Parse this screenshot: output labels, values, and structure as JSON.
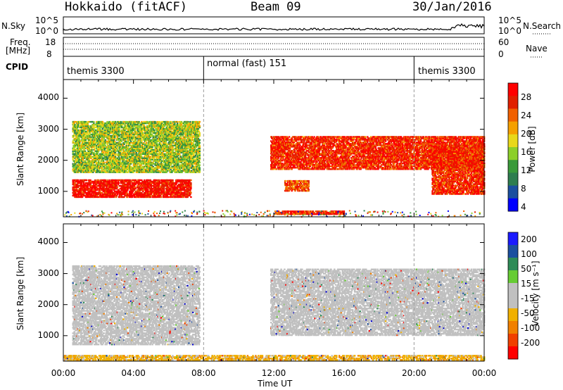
{
  "header": {
    "title": "Hokkaido (fitACF)",
    "beam": "Beam 09",
    "date": "30/Jan/2016"
  },
  "side_labels": {
    "nsky": "N.Sky",
    "nsearch": "N.Search",
    "freq_line1": "Freq.",
    "freq_line2": "[MHz]",
    "nave": "Nave",
    "cpid": "CPID"
  },
  "noise_axis": {
    "top": "10^5",
    "bottom": "10^0"
  },
  "freq_axis": {
    "left_top": "18",
    "left_bottom": "8",
    "right_top": "60",
    "right_bottom": "0"
  },
  "cpid_segments": [
    {
      "label": "themis 3300",
      "start": "00:00",
      "end": "08:00"
    },
    {
      "label": "normal (fast) 151",
      "start": "08:00",
      "end": "20:00"
    },
    {
      "label": "themis 3300",
      "start": "20:00",
      "end": "00:00"
    }
  ],
  "power_panel": {
    "ylabel": "Slant Range [km]",
    "cbar_label": "Power [dB]",
    "cbar_ticks": [
      "28",
      "24",
      "20",
      "16",
      "12",
      "8",
      "4"
    ]
  },
  "velocity_panel": {
    "ylabel": "Slant Range [km]",
    "cbar_label": "Velocity [m s⁻¹]",
    "cbar_ticks": [
      "200",
      "100",
      "50",
      "15",
      "-15",
      "-50",
      "-100",
      "-200"
    ]
  },
  "xaxis": {
    "label": "Time UT",
    "ticks": [
      "00:00",
      "04:00",
      "08:00",
      "12:00",
      "16:00",
      "20:00",
      "00:00"
    ]
  },
  "y_ticks": [
    "1000",
    "2000",
    "3000",
    "4000"
  ],
  "chart_data": [
    {
      "type": "heatmap",
      "title": "",
      "xlabel": "Time UT",
      "ylabel": "Slant Range [km]",
      "xlim": [
        "00:00",
        "24:00"
      ],
      "ylim": [
        180,
        4600
      ],
      "colorbar": "Power [dB]",
      "color_range": [
        0,
        30
      ],
      "echo_regions": [
        {
          "time_start_h": 0.5,
          "time_end_h": 7.3,
          "range_start_km": 800,
          "range_end_km": 1400,
          "level_db": 28
        },
        {
          "time_start_h": 0.5,
          "time_end_h": 7.8,
          "range_start_km": 1600,
          "range_end_km": 3300,
          "level_db": 14
        },
        {
          "time_start_h": 11.8,
          "time_end_h": 24,
          "range_start_km": 1700,
          "range_end_km": 2800,
          "level_db": 26
        },
        {
          "time_start_h": 12.6,
          "time_end_h": 14.0,
          "range_start_km": 1000,
          "range_end_km": 1400,
          "level_db": 24
        },
        {
          "time_start_h": 12.0,
          "time_end_h": 16.0,
          "range_start_km": 250,
          "range_end_km": 400,
          "level_db": 26
        },
        {
          "time_start_h": 21.0,
          "time_end_h": 24,
          "range_start_km": 900,
          "range_end_km": 2500,
          "level_db": 26
        }
      ]
    },
    {
      "type": "heatmap",
      "title": "",
      "xlabel": "Time UT",
      "ylabel": "Slant Range [km]",
      "xlim": [
        "00:00",
        "24:00"
      ],
      "ylim": [
        180,
        4600
      ],
      "colorbar": "Velocity [m s-1]",
      "color_range": [
        -200,
        200
      ],
      "echo_regions": [
        {
          "time_start_h": 0.5,
          "time_end_h": 7.8,
          "range_start_km": 700,
          "range_end_km": 3300,
          "velocity_ms": 0
        },
        {
          "time_start_h": 11.8,
          "time_end_h": 24,
          "range_start_km": 1000,
          "range_end_km": 3200,
          "velocity_ms": 0
        },
        {
          "time_start_h": 0,
          "time_end_h": 24,
          "range_start_km": 200,
          "range_end_km": 400,
          "velocity_ms": -60
        }
      ]
    }
  ]
}
